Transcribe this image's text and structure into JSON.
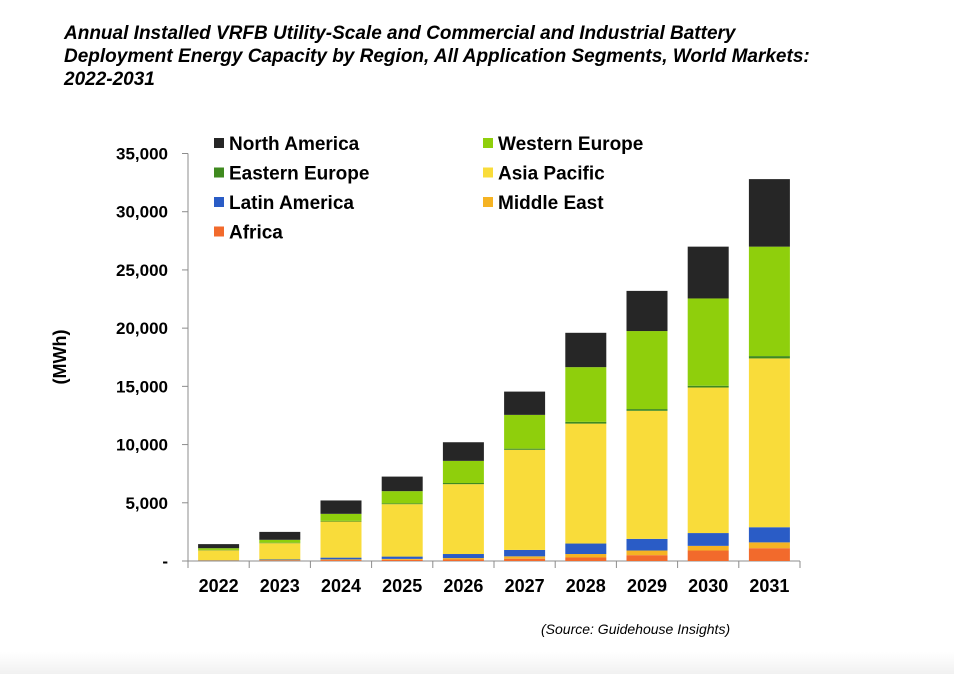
{
  "chart_data": {
    "type": "bar",
    "stacked": true,
    "title_lines": [
      "Annual Installed VRFB Utility-Scale and Commercial and Industrial Battery",
      "Deployment Energy Capacity by Region, All Application Segments, World Markets:",
      "2022-2031"
    ],
    "ylabel": "(MWh)",
    "ylim": [
      0,
      35000
    ],
    "yticks": [
      0,
      5000,
      10000,
      15000,
      20000,
      25000,
      30000,
      35000
    ],
    "ytick_labels": [
      "-",
      "5,000",
      "10,000",
      "15,000",
      "20,000",
      "25,000",
      "30,000",
      "35,000"
    ],
    "categories": [
      "2022",
      "2023",
      "2024",
      "2025",
      "2026",
      "2027",
      "2028",
      "2029",
      "2030",
      "2031"
    ],
    "legend_position": "top-left",
    "legend_order": [
      "North America",
      "Western Europe",
      "Eastern Europe",
      "Asia Pacific",
      "Latin America",
      "Middle East",
      "Africa"
    ],
    "series": [
      {
        "name": "Africa",
        "color": "#f26a2c",
        "values": [
          20,
          40,
          80,
          100,
          130,
          200,
          300,
          500,
          900,
          1100
        ]
      },
      {
        "name": "Middle East",
        "color": "#f5b323",
        "values": [
          20,
          30,
          60,
          80,
          120,
          200,
          300,
          400,
          400,
          500
        ]
      },
      {
        "name": "Latin America",
        "color": "#2a5cc6",
        "values": [
          30,
          60,
          150,
          200,
          350,
          550,
          900,
          1000,
          1100,
          1300
        ]
      },
      {
        "name": "Asia Pacific",
        "color": "#f9dc3a",
        "values": [
          850,
          1400,
          3100,
          4500,
          6000,
          8600,
          10300,
          11000,
          12500,
          14500
        ]
      },
      {
        "name": "Eastern Europe",
        "color": "#3f8a1f",
        "values": [
          30,
          40,
          60,
          70,
          100,
          100,
          150,
          150,
          150,
          200
        ]
      },
      {
        "name": "Western Europe",
        "color": "#8fcf0c",
        "values": [
          150,
          250,
          600,
          1050,
          1900,
          2900,
          4700,
          6700,
          7500,
          9400
        ]
      },
      {
        "name": "North America",
        "color": "#262626",
        "values": [
          350,
          680,
          1150,
          1250,
          1600,
          2000,
          2950,
          3450,
          4450,
          5800
        ]
      }
    ]
  },
  "source": "(Source: Guidehouse Insights)"
}
